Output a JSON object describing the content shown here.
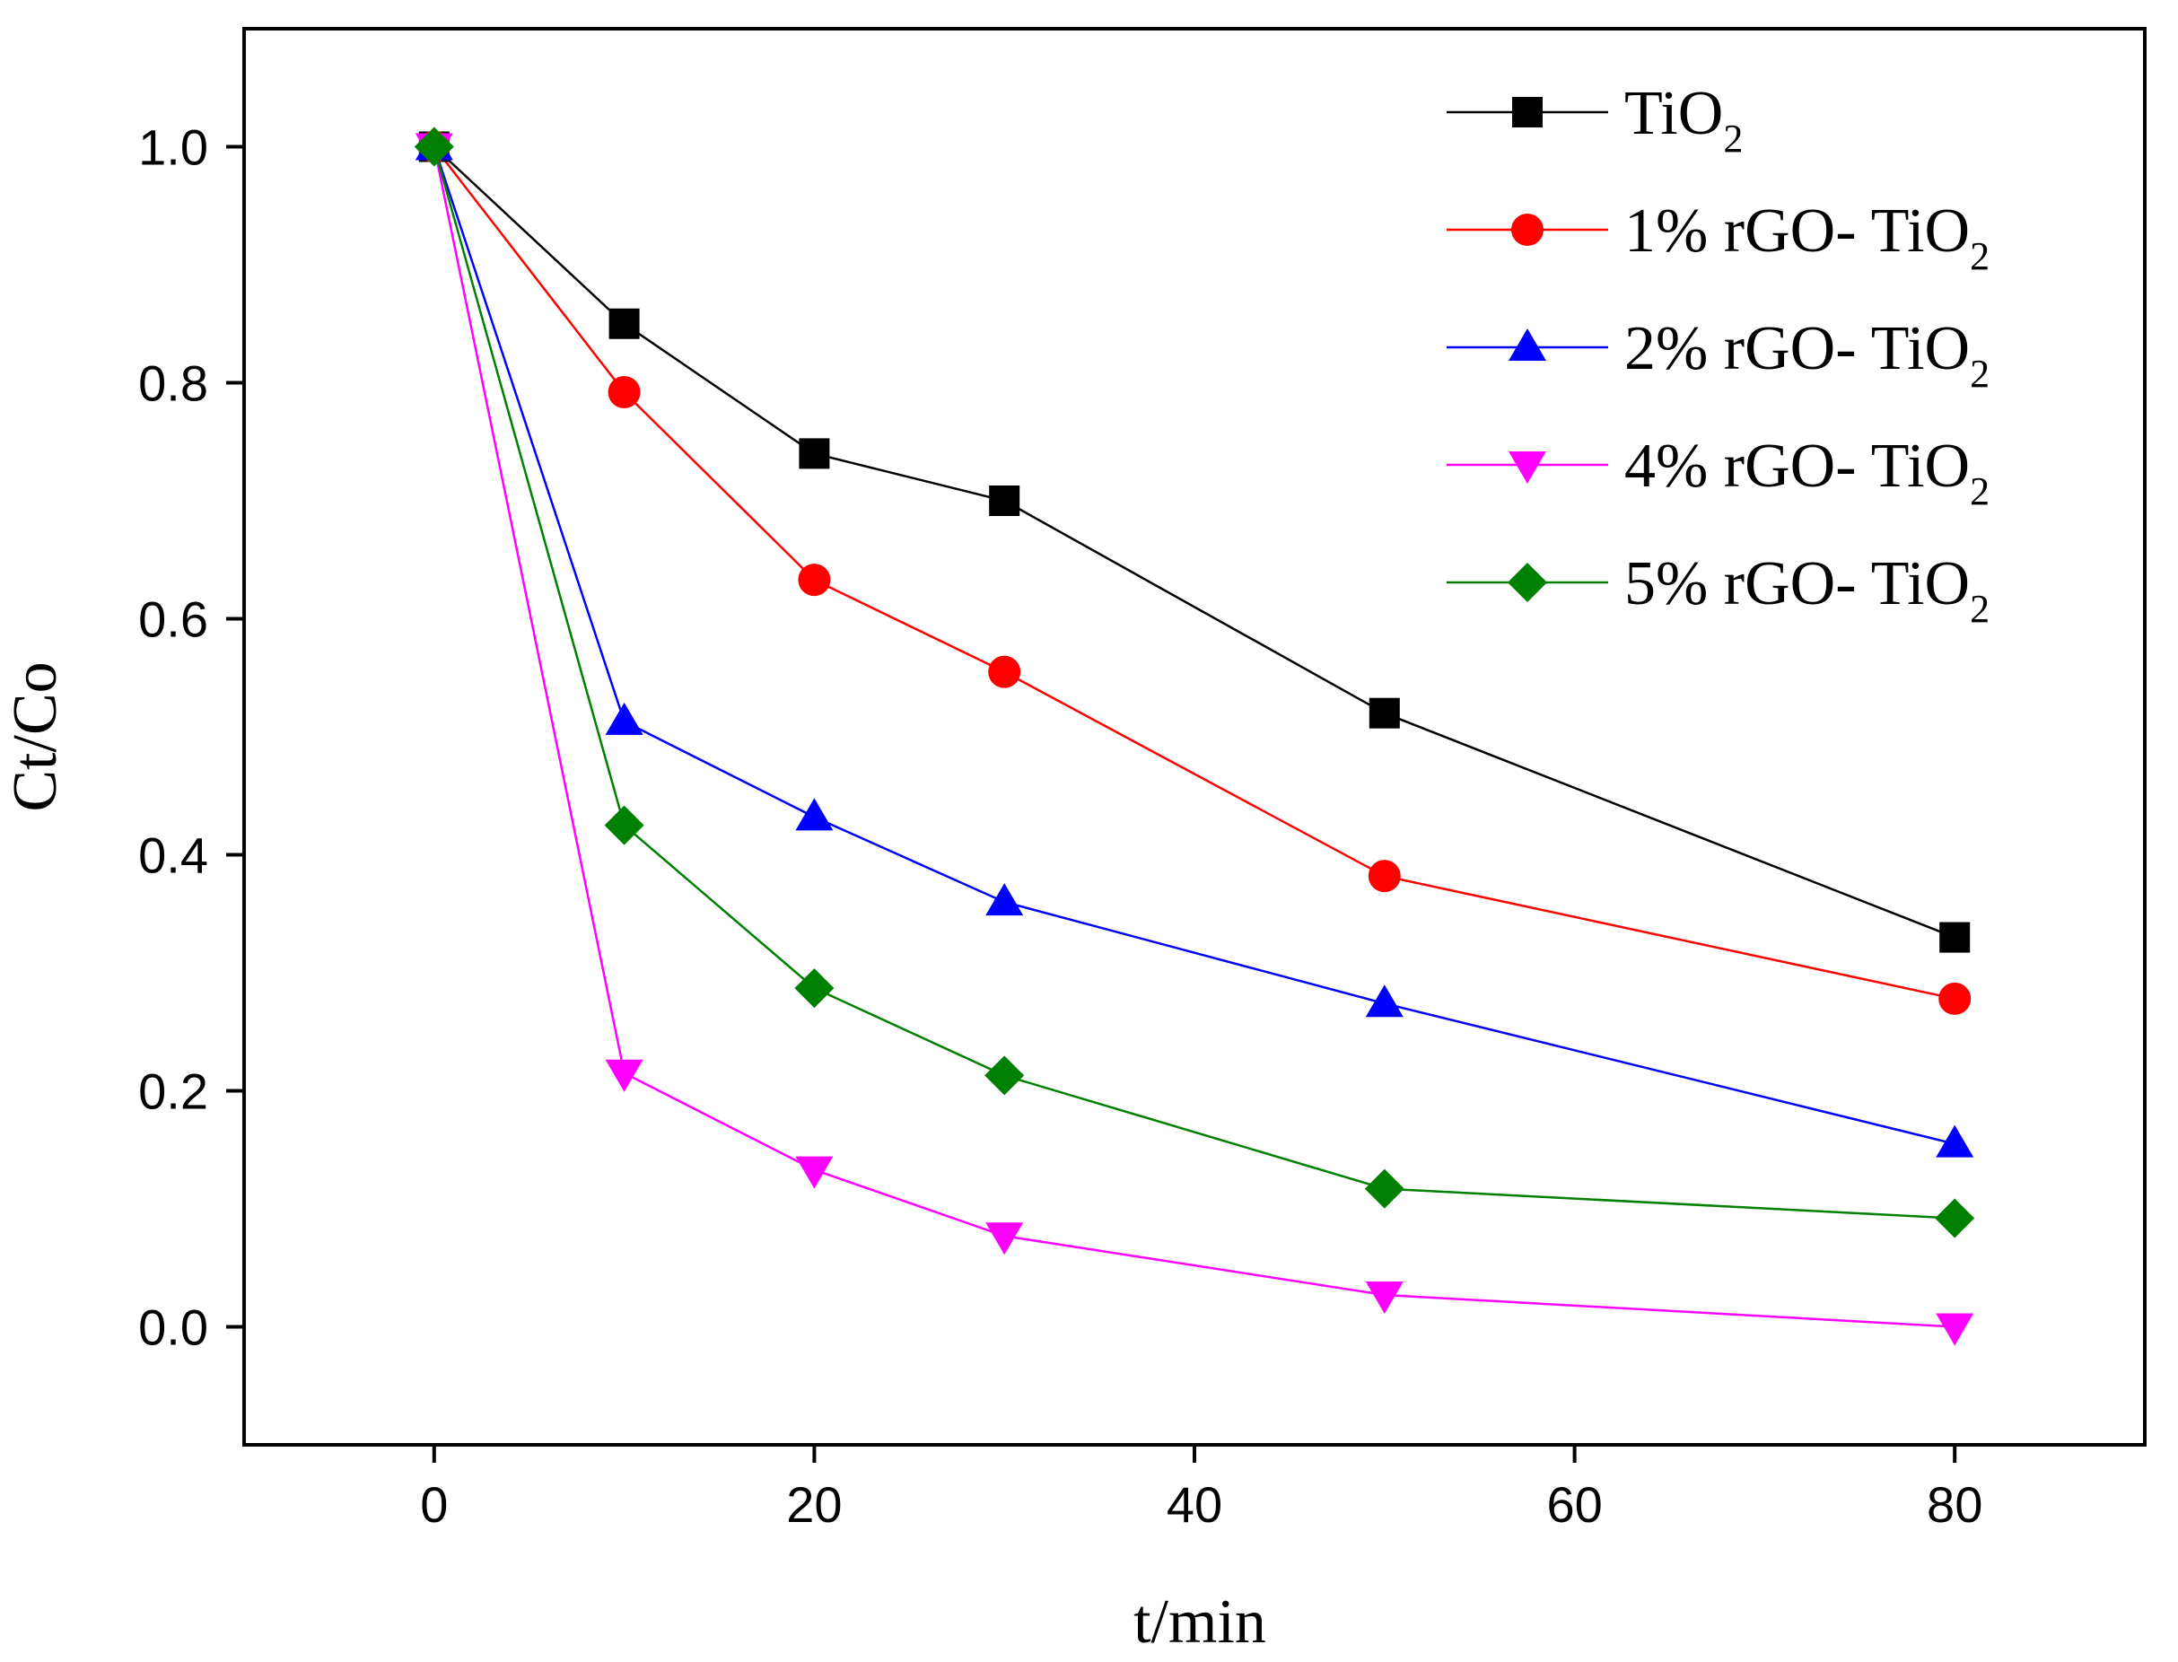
{
  "chart_data": {
    "type": "line",
    "xlabel": "t/min",
    "ylabel": "Ct/Co",
    "xlim": [
      -10,
      90
    ],
    "ylim": [
      -0.1,
      1.1
    ],
    "x_ticks": [
      0,
      20,
      40,
      60,
      80
    ],
    "y_ticks": [
      0.0,
      0.2,
      0.4,
      0.6,
      0.8,
      1.0
    ],
    "x_tick_labels": [
      "0",
      "20",
      "40",
      "60",
      "80"
    ],
    "y_tick_labels": [
      "0.0",
      "0.2",
      "0.4",
      "0.6",
      "0.8",
      "1.0"
    ],
    "grid": false,
    "legend_position": "top-right",
    "x": [
      0,
      10,
      20,
      30,
      50,
      80
    ],
    "series": [
      {
        "name": "TiO2",
        "label_main": "TiO",
        "label_sub": "2",
        "color": "#000000",
        "marker": "square",
        "values": [
          1.0,
          0.85,
          0.74,
          0.7,
          0.52,
          0.33
        ]
      },
      {
        "name": "1% rGO- TiO2",
        "label_main": "1% rGO- TiO",
        "label_sub": "2",
        "color": "#ff0000",
        "marker": "circle",
        "values": [
          1.0,
          0.792,
          0.633,
          0.555,
          0.382,
          0.278
        ]
      },
      {
        "name": "2% rGO- TiO2",
        "label_main": "2% rGO- TiO",
        "label_sub": "2",
        "color": "#0000ff",
        "marker": "triangle-up",
        "values": [
          1.0,
          0.513,
          0.432,
          0.36,
          0.274,
          0.155
        ]
      },
      {
        "name": "4% rGO- TiO2",
        "label_main": "4% rGO- TiO",
        "label_sub": "2",
        "color": "#ff00ff",
        "marker": "triangle-down",
        "values": [
          1.0,
          0.215,
          0.133,
          0.077,
          0.027,
          0.0
        ]
      },
      {
        "name": "5% rGO- TiO2",
        "label_main": "5% rGO- TiO",
        "label_sub": "2",
        "color": "#008000",
        "marker": "diamond",
        "values": [
          1.0,
          0.425,
          0.287,
          0.213,
          0.117,
          0.092
        ]
      }
    ]
  }
}
